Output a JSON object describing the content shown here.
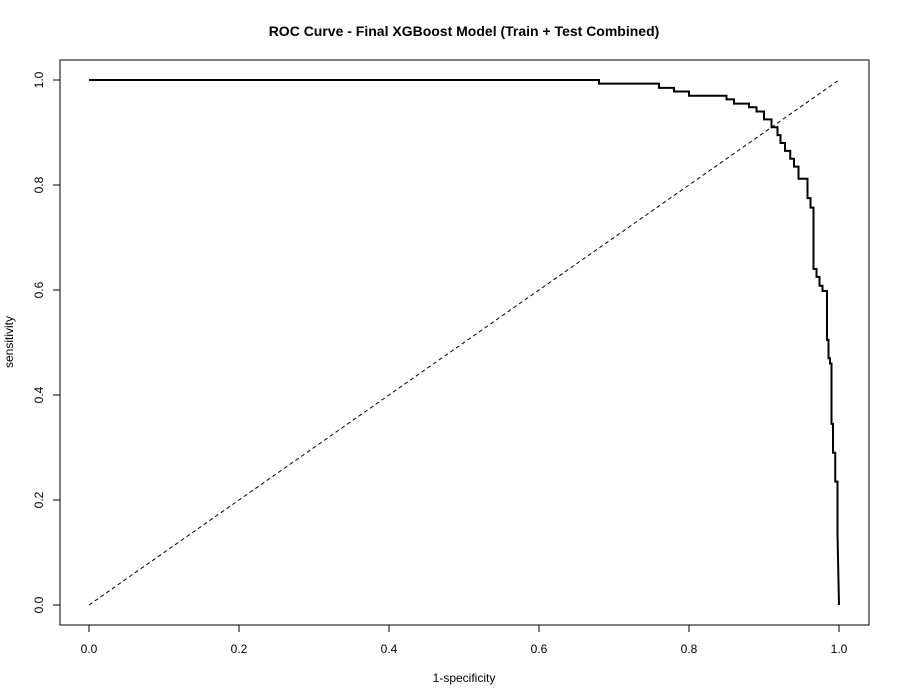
{
  "chart_data": {
    "type": "line",
    "title": "ROC Curve - Final XGBoost Model (Train + Test Combined)",
    "xlabel": "1-specificity",
    "ylabel": "sensitivity",
    "xlim": [
      0,
      1
    ],
    "ylim": [
      0,
      1
    ],
    "grid": false,
    "x_ticks": [
      0.0,
      0.2,
      0.4,
      0.6,
      0.8,
      1.0
    ],
    "x_tick_labels": [
      "0.0",
      "0.2",
      "0.4",
      "0.6",
      "0.8",
      "1.0"
    ],
    "y_ticks": [
      0.0,
      0.2,
      0.4,
      0.6,
      0.8,
      1.0
    ],
    "y_tick_labels": [
      "0.0",
      "0.2",
      "0.4",
      "0.6",
      "0.8",
      "1.0"
    ],
    "series": [
      {
        "style": "step",
        "color": "#000000",
        "x": [
          0.0,
          0.68,
          0.68,
          0.76,
          0.76,
          0.78,
          0.78,
          0.8,
          0.8,
          0.85,
          0.85,
          0.86,
          0.86,
          0.88,
          0.88,
          0.89,
          0.89,
          0.9,
          0.9,
          0.91,
          0.91,
          0.918,
          0.918,
          0.922,
          0.922,
          0.928,
          0.928,
          0.935,
          0.935,
          0.94,
          0.94,
          0.946,
          0.946,
          0.958,
          0.958,
          0.962,
          0.962,
          0.966,
          0.966,
          0.97,
          0.97,
          0.974,
          0.974,
          0.978,
          0.978,
          0.984,
          0.984,
          0.986,
          0.986,
          0.988,
          0.988,
          0.99,
          0.99,
          0.992,
          0.992,
          0.995,
          0.995,
          0.998,
          0.998,
          1.0
        ],
        "y": [
          1.0,
          1.0,
          0.993,
          0.993,
          0.985,
          0.985,
          0.978,
          0.978,
          0.97,
          0.97,
          0.963,
          0.963,
          0.955,
          0.955,
          0.948,
          0.948,
          0.94,
          0.94,
          0.925,
          0.925,
          0.91,
          0.91,
          0.895,
          0.895,
          0.88,
          0.88,
          0.865,
          0.865,
          0.85,
          0.85,
          0.835,
          0.835,
          0.812,
          0.812,
          0.775,
          0.775,
          0.757,
          0.757,
          0.64,
          0.64,
          0.625,
          0.625,
          0.608,
          0.608,
          0.598,
          0.598,
          0.505,
          0.505,
          0.47,
          0.47,
          0.46,
          0.46,
          0.345,
          0.345,
          0.29,
          0.29,
          0.235,
          0.235,
          0.135,
          0.0
        ]
      },
      {
        "style": "dashed",
        "color": "#000000",
        "x": [
          0.0,
          1.0
        ],
        "y": [
          0.0,
          1.0
        ]
      }
    ]
  }
}
